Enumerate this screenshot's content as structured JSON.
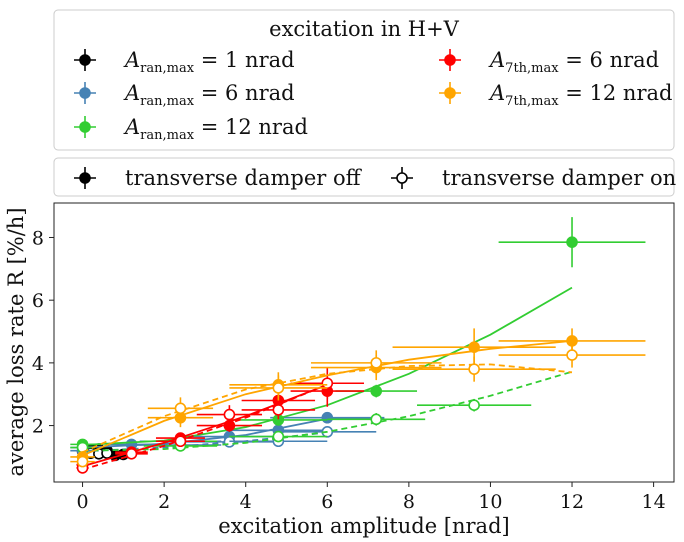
{
  "legend_top": {
    "title": "excitation in H+V",
    "entries": [
      {
        "label": "A_ran,max = 1 nrad",
        "main": "A",
        "sub": "ran,max",
        "rest": " = 1 nrad",
        "color": "#000000"
      },
      {
        "label": "A_ran,max = 6 nrad",
        "main": "A",
        "sub": "ran,max",
        "rest": " = 6 nrad",
        "color": "#4682b4"
      },
      {
        "label": "A_ran,max = 12 nrad",
        "main": "A",
        "sub": "ran,max",
        "rest": " = 12 nrad",
        "color": "#32cd32"
      },
      {
        "label": "A_7th,max = 6 nrad",
        "main": "A",
        "sub": "7th,max",
        "rest": " = 6 nrad",
        "color": "#ff0000"
      },
      {
        "label": "A_7th,max = 12 nrad",
        "main": "A",
        "sub": "7th,max",
        "rest": " = 12 nrad",
        "color": "#ffa500"
      }
    ]
  },
  "legend_damper": {
    "entries": [
      {
        "label": "transverse damper off",
        "marker": "filled"
      },
      {
        "label": "transverse damper on",
        "marker": "open"
      }
    ]
  },
  "chart_data": {
    "type": "scatter",
    "xlabel": "excitation amplitude [nrad]",
    "ylabel": "average loss rate R [%/h]",
    "xlim": [
      -0.7,
      14.5
    ],
    "ylim": [
      0.2,
      9.1
    ],
    "xticks": [
      0,
      2,
      4,
      6,
      8,
      10,
      12,
      14
    ],
    "yticks": [
      2,
      4,
      6,
      8
    ],
    "grid": false,
    "series": [
      {
        "name": "A_ran,max = 1 nrad, damper off",
        "color": "#000000",
        "filled": true,
        "points": [
          {
            "x": 0.0,
            "y": 1.18,
            "xerr": 0.1,
            "yerr": 0.08
          },
          {
            "x": 0.2,
            "y": 1.22,
            "xerr": 0.1,
            "yerr": 0.08
          },
          {
            "x": 0.4,
            "y": 1.25,
            "xerr": 0.1,
            "yerr": 0.08
          },
          {
            "x": 0.6,
            "y": 1.2,
            "xerr": 0.1,
            "yerr": 0.08
          },
          {
            "x": 0.8,
            "y": 1.05,
            "xerr": 0.1,
            "yerr": 0.06
          },
          {
            "x": 1.0,
            "y": 1.08,
            "xerr": 0.1,
            "yerr": 0.06
          }
        ],
        "fit": [
          [
            0.0,
            1.18
          ],
          [
            1.0,
            1.08
          ]
        ],
        "fit_dashed": false
      },
      {
        "name": "A_ran,max = 1 nrad, damper on",
        "color": "#000000",
        "filled": false,
        "points": [
          {
            "x": 0.2,
            "y": 1.12,
            "xerr": 0.1,
            "yerr": 0.07
          },
          {
            "x": 0.4,
            "y": 1.1,
            "xerr": 0.1,
            "yerr": 0.07
          },
          {
            "x": 0.6,
            "y": 1.12,
            "xerr": 0.1,
            "yerr": 0.07
          }
        ],
        "fit": [
          [
            0.0,
            1.12
          ],
          [
            0.8,
            1.1
          ]
        ],
        "fit_dashed": true
      },
      {
        "name": "A_ran,max = 6 nrad, damper off",
        "color": "#4682b4",
        "filled": true,
        "points": [
          {
            "x": 0.0,
            "y": 1.3,
            "xerr": 0.3,
            "yerr": 0.08
          },
          {
            "x": 1.2,
            "y": 1.4,
            "xerr": 0.6,
            "yerr": 0.08
          },
          {
            "x": 2.4,
            "y": 1.5,
            "xerr": 1.0,
            "yerr": 0.1
          },
          {
            "x": 3.6,
            "y": 1.65,
            "xerr": 1.2,
            "yerr": 0.1
          },
          {
            "x": 4.8,
            "y": 1.85,
            "xerr": 1.3,
            "yerr": 0.12
          },
          {
            "x": 6.0,
            "y": 2.25,
            "xerr": 1.4,
            "yerr": 0.15
          }
        ],
        "fit": [
          [
            0.0,
            1.3
          ],
          [
            2.0,
            1.42
          ],
          [
            4.0,
            1.7
          ],
          [
            6.0,
            2.22
          ]
        ],
        "fit_dashed": false
      },
      {
        "name": "A_ran,max = 6 nrad, damper on",
        "color": "#4682b4",
        "filled": false,
        "points": [
          {
            "x": 0.0,
            "y": 1.2,
            "xerr": 0.3,
            "yerr": 0.07
          },
          {
            "x": 2.4,
            "y": 1.38,
            "xerr": 1.0,
            "yerr": 0.08
          },
          {
            "x": 3.6,
            "y": 1.48,
            "xerr": 1.1,
            "yerr": 0.08
          },
          {
            "x": 4.8,
            "y": 1.5,
            "xerr": 1.2,
            "yerr": 0.1
          },
          {
            "x": 6.0,
            "y": 1.8,
            "xerr": 1.2,
            "yerr": 0.15
          }
        ],
        "fit": [
          [
            0.0,
            1.18
          ],
          [
            2.0,
            1.3
          ],
          [
            4.0,
            1.5
          ],
          [
            6.0,
            1.78
          ]
        ],
        "fit_dashed": true
      },
      {
        "name": "A_ran,max = 12 nrad, damper off",
        "color": "#32cd32",
        "filled": true,
        "points": [
          {
            "x": 0.0,
            "y": 1.4,
            "xerr": 0.3,
            "yerr": 0.08
          },
          {
            "x": 2.4,
            "y": 1.5,
            "xerr": 0.9,
            "yerr": 0.1
          },
          {
            "x": 4.8,
            "y": 2.18,
            "xerr": 1.2,
            "yerr": 0.15
          },
          {
            "x": 7.2,
            "y": 3.1,
            "xerr": 1.0,
            "yerr": 0.2
          },
          {
            "x": 12.0,
            "y": 7.85,
            "xerr": 1.8,
            "yerr": 0.8
          }
        ],
        "fit": [
          [
            0.0,
            1.38
          ],
          [
            2.0,
            1.52
          ],
          [
            4.0,
            1.95
          ],
          [
            6.0,
            2.65
          ],
          [
            8.0,
            3.65
          ],
          [
            10.0,
            4.9
          ],
          [
            12.0,
            6.4
          ]
        ],
        "fit_dashed": false
      },
      {
        "name": "A_ran,max = 12 nrad, damper on",
        "color": "#32cd32",
        "filled": false,
        "points": [
          {
            "x": 0.0,
            "y": 1.3,
            "xerr": 0.3,
            "yerr": 0.07
          },
          {
            "x": 2.4,
            "y": 1.35,
            "xerr": 0.9,
            "yerr": 0.08
          },
          {
            "x": 4.8,
            "y": 1.65,
            "xerr": 1.2,
            "yerr": 0.1
          },
          {
            "x": 7.2,
            "y": 2.2,
            "xerr": 1.2,
            "yerr": 0.2
          },
          {
            "x": 9.6,
            "y": 2.65,
            "xerr": 1.4,
            "yerr": 0.2
          }
        ],
        "fit": [
          [
            0.0,
            1.2
          ],
          [
            2.0,
            1.25
          ],
          [
            4.0,
            1.45
          ],
          [
            6.0,
            1.8
          ],
          [
            8.0,
            2.3
          ],
          [
            10.0,
            2.95
          ],
          [
            12.0,
            3.72
          ]
        ],
        "fit_dashed": true
      },
      {
        "name": "A_7th,max = 6 nrad, damper off",
        "color": "#ff0000",
        "filled": true,
        "points": [
          {
            "x": 0.0,
            "y": 0.75,
            "xerr": 0.15,
            "yerr": 0.08
          },
          {
            "x": 1.2,
            "y": 1.15,
            "xerr": 0.4,
            "yerr": 0.1
          },
          {
            "x": 2.4,
            "y": 1.6,
            "xerr": 0.6,
            "yerr": 0.15
          },
          {
            "x": 3.6,
            "y": 2.0,
            "xerr": 0.8,
            "yerr": 0.2
          },
          {
            "x": 4.8,
            "y": 2.8,
            "xerr": 0.9,
            "yerr": 0.35
          },
          {
            "x": 6.0,
            "y": 3.1,
            "xerr": 0.9,
            "yerr": 0.5
          }
        ],
        "fit": [
          [
            0.0,
            0.7
          ],
          [
            2.0,
            1.45
          ],
          [
            4.0,
            2.3
          ],
          [
            6.0,
            3.3
          ]
        ],
        "fit_dashed": false
      },
      {
        "name": "A_7th,max = 6 nrad, damper on",
        "color": "#ff0000",
        "filled": false,
        "points": [
          {
            "x": 0.0,
            "y": 0.65,
            "xerr": 0.15,
            "yerr": 0.07
          },
          {
            "x": 1.2,
            "y": 1.1,
            "xerr": 0.4,
            "yerr": 0.1
          },
          {
            "x": 2.4,
            "y": 1.5,
            "xerr": 0.6,
            "yerr": 0.15
          },
          {
            "x": 3.6,
            "y": 2.35,
            "xerr": 0.8,
            "yerr": 0.3
          },
          {
            "x": 4.8,
            "y": 2.5,
            "xerr": 0.9,
            "yerr": 0.3
          },
          {
            "x": 6.0,
            "y": 3.35,
            "xerr": 0.9,
            "yerr": 0.5
          }
        ],
        "fit": [
          [
            0.0,
            0.6
          ],
          [
            2.0,
            1.35
          ],
          [
            4.0,
            2.25
          ],
          [
            6.0,
            3.3
          ]
        ],
        "fit_dashed": true
      },
      {
        "name": "A_7th,max = 12 nrad, damper off",
        "color": "#ffa500",
        "filled": true,
        "points": [
          {
            "x": 0.0,
            "y": 1.0,
            "xerr": 0.3,
            "yerr": 0.1
          },
          {
            "x": 2.4,
            "y": 2.25,
            "xerr": 0.8,
            "yerr": 0.3
          },
          {
            "x": 4.8,
            "y": 3.3,
            "xerr": 1.2,
            "yerr": 0.4
          },
          {
            "x": 7.2,
            "y": 3.85,
            "xerr": 1.6,
            "yerr": 0.4
          },
          {
            "x": 9.6,
            "y": 4.5,
            "xerr": 2.0,
            "yerr": 0.6
          },
          {
            "x": 12.0,
            "y": 4.7,
            "xerr": 1.8,
            "yerr": 0.4
          }
        ],
        "fit": [
          [
            0.0,
            1.05
          ],
          [
            2.0,
            2.15
          ],
          [
            4.0,
            3.0
          ],
          [
            6.0,
            3.6
          ],
          [
            8.0,
            4.1
          ],
          [
            10.0,
            4.45
          ],
          [
            12.0,
            4.7
          ]
        ],
        "fit_dashed": false
      },
      {
        "name": "A_7th,max = 12 nrad, damper on",
        "color": "#ffa500",
        "filled": false,
        "points": [
          {
            "x": 0.0,
            "y": 0.85,
            "xerr": 0.3,
            "yerr": 0.1
          },
          {
            "x": 2.4,
            "y": 2.55,
            "xerr": 0.8,
            "yerr": 0.35
          },
          {
            "x": 4.8,
            "y": 3.2,
            "xerr": 1.2,
            "yerr": 0.4
          },
          {
            "x": 7.2,
            "y": 4.0,
            "xerr": 1.6,
            "yerr": 0.4
          },
          {
            "x": 9.6,
            "y": 3.8,
            "xerr": 2.0,
            "yerr": 0.4
          },
          {
            "x": 12.0,
            "y": 4.25,
            "xerr": 1.8,
            "yerr": 0.4
          }
        ],
        "fit": [
          [
            0.0,
            1.15
          ],
          [
            2.0,
            2.3
          ],
          [
            4.0,
            3.15
          ],
          [
            6.0,
            3.65
          ],
          [
            8.0,
            3.9
          ],
          [
            10.0,
            3.95
          ],
          [
            12.0,
            3.7
          ]
        ],
        "fit_dashed": true
      }
    ]
  }
}
